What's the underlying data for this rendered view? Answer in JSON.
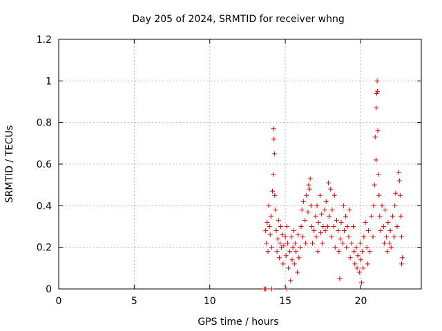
{
  "chart_data": {
    "type": "scatter",
    "title": "Day 205 of 2024, SRMTID for receiver whng",
    "xlabel": "GPS time / hours",
    "ylabel": "SRMTID / TECUs",
    "xlim": [
      0,
      24
    ],
    "ylim": [
      0,
      1.2
    ],
    "xticks": [
      0,
      5,
      10,
      15,
      20
    ],
    "xtick_labels": [
      "0",
      "5",
      "10",
      "15",
      "20"
    ],
    "yticks": [
      0,
      0.2,
      0.4,
      0.6,
      0.8,
      1.0,
      1.2
    ],
    "ytick_labels": [
      "0",
      "0.2",
      "0.4",
      "0.6",
      "0.8",
      "1",
      "1.2"
    ],
    "grid": true,
    "marker": "plus",
    "color": "#e00000",
    "series": [
      {
        "name": "SRMTID",
        "points": [
          [
            13.6,
            0.0
          ],
          [
            13.7,
            0.0
          ],
          [
            14.1,
            0.0
          ],
          [
            15.1,
            0.0
          ],
          [
            13.7,
            0.28
          ],
          [
            13.75,
            0.22
          ],
          [
            13.8,
            0.32
          ],
          [
            13.85,
            0.18
          ],
          [
            13.9,
            0.4
          ],
          [
            13.95,
            0.3
          ],
          [
            14.0,
            0.26
          ],
          [
            14.05,
            0.35
          ],
          [
            14.1,
            0.2
          ],
          [
            14.15,
            0.47
          ],
          [
            14.2,
            0.55
          ],
          [
            14.22,
            0.77
          ],
          [
            14.25,
            0.72
          ],
          [
            14.28,
            0.65
          ],
          [
            14.3,
            0.45
          ],
          [
            14.35,
            0.38
          ],
          [
            14.4,
            0.28
          ],
          [
            14.45,
            0.18
          ],
          [
            14.5,
            0.24
          ],
          [
            14.55,
            0.33
          ],
          [
            14.6,
            0.15
          ],
          [
            14.65,
            0.22
          ],
          [
            14.7,
            0.3
          ],
          [
            14.75,
            0.2
          ],
          [
            14.8,
            0.26
          ],
          [
            14.85,
            0.12
          ],
          [
            14.9,
            0.21
          ],
          [
            15.0,
            0.25
          ],
          [
            15.05,
            0.16
          ],
          [
            15.1,
            0.3
          ],
          [
            15.15,
            0.22
          ],
          [
            15.2,
            0.1
          ],
          [
            15.3,
            0.18
          ],
          [
            15.35,
            0.04
          ],
          [
            15.4,
            0.25
          ],
          [
            15.45,
            0.14
          ],
          [
            15.5,
            0.2
          ],
          [
            15.55,
            0.28
          ],
          [
            15.6,
            0.12
          ],
          [
            15.65,
            0.22
          ],
          [
            15.7,
            0.18
          ],
          [
            15.8,
            0.08
          ],
          [
            15.85,
            0.26
          ],
          [
            15.9,
            0.15
          ],
          [
            16.0,
            0.2
          ],
          [
            16.05,
            0.3
          ],
          [
            16.1,
            0.38
          ],
          [
            16.15,
            0.25
          ],
          [
            16.2,
            0.42
          ],
          [
            16.3,
            0.33
          ],
          [
            16.35,
            0.22
          ],
          [
            16.4,
            0.45
          ],
          [
            16.5,
            0.37
          ],
          [
            16.55,
            0.5
          ],
          [
            16.6,
            0.48
          ],
          [
            16.65,
            0.53
          ],
          [
            16.7,
            0.4
          ],
          [
            16.75,
            0.3
          ],
          [
            16.8,
            0.22
          ],
          [
            16.9,
            0.28
          ],
          [
            17.0,
            0.35
          ],
          [
            17.05,
            0.25
          ],
          [
            17.1,
            0.4
          ],
          [
            17.15,
            0.18
          ],
          [
            17.2,
            0.32
          ],
          [
            17.3,
            0.45
          ],
          [
            17.35,
            0.27
          ],
          [
            17.4,
            0.36
          ],
          [
            17.45,
            0.22
          ],
          [
            17.5,
            0.3
          ],
          [
            17.6,
            0.38
          ],
          [
            17.65,
            0.28
          ],
          [
            17.7,
            0.42
          ],
          [
            17.8,
            0.3
          ],
          [
            17.85,
            0.51
          ],
          [
            17.9,
            0.35
          ],
          [
            18.0,
            0.48
          ],
          [
            18.05,
            0.25
          ],
          [
            18.1,
            0.38
          ],
          [
            18.2,
            0.3
          ],
          [
            18.25,
            0.45
          ],
          [
            18.3,
            0.2
          ],
          [
            18.4,
            0.33
          ],
          [
            18.5,
            0.28
          ],
          [
            18.55,
            0.18
          ],
          [
            18.6,
            0.05
          ],
          [
            18.65,
            0.24
          ],
          [
            18.7,
            0.32
          ],
          [
            18.8,
            0.22
          ],
          [
            18.85,
            0.4
          ],
          [
            18.9,
            0.28
          ],
          [
            19.0,
            0.35
          ],
          [
            19.05,
            0.2
          ],
          [
            19.1,
            0.3
          ],
          [
            19.2,
            0.25
          ],
          [
            19.25,
            0.38
          ],
          [
            19.3,
            0.15
          ],
          [
            19.4,
            0.22
          ],
          [
            19.5,
            0.3
          ],
          [
            19.55,
            0.18
          ],
          [
            19.6,
            0.12
          ],
          [
            19.7,
            0.2
          ],
          [
            19.75,
            0.1
          ],
          [
            19.8,
            0.16
          ],
          [
            19.9,
            0.08
          ],
          [
            19.95,
            0.22
          ],
          [
            20.0,
            0.14
          ],
          [
            20.05,
            0.03
          ],
          [
            20.1,
            0.18
          ],
          [
            20.15,
            0.1
          ],
          [
            20.2,
            0.25
          ],
          [
            20.3,
            0.32
          ],
          [
            20.4,
            0.2
          ],
          [
            20.45,
            0.12
          ],
          [
            20.5,
            0.28
          ],
          [
            20.6,
            0.18
          ],
          [
            20.7,
            0.35
          ],
          [
            20.8,
            0.25
          ],
          [
            20.85,
            0.4
          ],
          [
            20.9,
            0.5
          ],
          [
            20.95,
            0.73
          ],
          [
            21.0,
            0.62
          ],
          [
            21.02,
            0.87
          ],
          [
            21.05,
            0.94
          ],
          [
            21.08,
            1.0
          ],
          [
            21.1,
            0.95
          ],
          [
            21.12,
            0.76
          ],
          [
            21.15,
            0.55
          ],
          [
            21.2,
            0.45
          ],
          [
            21.25,
            0.35
          ],
          [
            21.3,
            0.28
          ],
          [
            21.4,
            0.4
          ],
          [
            21.5,
            0.3
          ],
          [
            21.55,
            0.22
          ],
          [
            21.6,
            0.38
          ],
          [
            21.7,
            0.25
          ],
          [
            21.75,
            0.18
          ],
          [
            21.8,
            0.32
          ],
          [
            21.9,
            0.22
          ],
          [
            21.95,
            0.28
          ],
          [
            22.0,
            0.2
          ],
          [
            22.1,
            0.35
          ],
          [
            22.2,
            0.25
          ],
          [
            22.25,
            0.4
          ],
          [
            22.3,
            0.46
          ],
          [
            22.4,
            0.3
          ],
          [
            22.5,
            0.56
          ],
          [
            22.55,
            0.52
          ],
          [
            22.6,
            0.45
          ],
          [
            22.65,
            0.35
          ],
          [
            22.7,
            0.25
          ],
          [
            22.75,
            0.15
          ],
          [
            22.7,
            0.12
          ]
        ]
      }
    ]
  }
}
